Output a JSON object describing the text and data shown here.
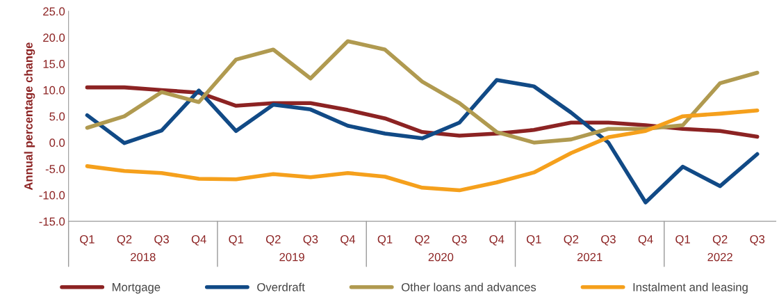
{
  "chart_data": {
    "type": "line",
    "ylabel": "Annual percentage change",
    "categories": [
      "Q1",
      "Q2",
      "Q3",
      "Q4",
      "Q1",
      "Q2",
      "Q3",
      "Q4",
      "Q1",
      "Q2",
      "Q3",
      "Q4",
      "Q1",
      "Q2",
      "Q3",
      "Q4",
      "Q1",
      "Q2",
      "Q3"
    ],
    "annotations": [
      "2018",
      "2019",
      "2020",
      "2021",
      "2022"
    ],
    "series": [
      {
        "name": "Mortgage",
        "color": "#8c2323",
        "values": [
          10.5,
          10.5,
          10.0,
          9.5,
          7.0,
          7.5,
          7.5,
          6.2,
          4.6,
          2.0,
          1.3,
          1.7,
          2.4,
          3.8,
          3.8,
          3.3,
          2.6,
          2.2,
          1.1
        ]
      },
      {
        "name": "Overdraft",
        "color": "#114a86",
        "values": [
          5.2,
          -0.1,
          2.3,
          9.9,
          2.2,
          7.2,
          6.3,
          3.2,
          1.7,
          0.8,
          3.8,
          11.9,
          10.7,
          5.7,
          0.0,
          -11.4,
          -4.6,
          -8.3,
          -2.2
        ]
      },
      {
        "name": "Other loans and advances",
        "color": "#b09a50",
        "values": [
          2.8,
          5.0,
          9.6,
          7.7,
          15.8,
          17.7,
          12.2,
          19.3,
          17.7,
          11.6,
          7.5,
          2.0,
          0.0,
          0.6,
          2.6,
          2.6,
          3.3,
          11.3,
          13.3
        ]
      },
      {
        "name": "Instalment and leasing",
        "color": "#f5a01c",
        "values": [
          -4.5,
          -5.4,
          -5.8,
          -6.9,
          -7.0,
          -6.0,
          -6.6,
          -5.8,
          -6.5,
          -8.6,
          -9.1,
          -7.6,
          -5.7,
          -2.0,
          1.0,
          2.2,
          5.0,
          5.5,
          6.1
        ]
      }
    ],
    "ylim": [
      -15,
      25
    ],
    "yticks": [
      {
        "value": -15,
        "label": "-15.0"
      },
      {
        "value": -10,
        "label": "-10.0"
      },
      {
        "value": -5,
        "label": "-5.0"
      },
      {
        "value": 0,
        "label": "0.0"
      },
      {
        "value": 5,
        "label": "5.0"
      },
      {
        "value": 10,
        "label": "10.0"
      },
      {
        "value": 15,
        "label": "15.0"
      },
      {
        "value": 20,
        "label": "20.0"
      },
      {
        "value": 25,
        "label": "25.0"
      }
    ],
    "grid": false,
    "legend": "bottom",
    "marker": "none",
    "line_style": "solid"
  }
}
